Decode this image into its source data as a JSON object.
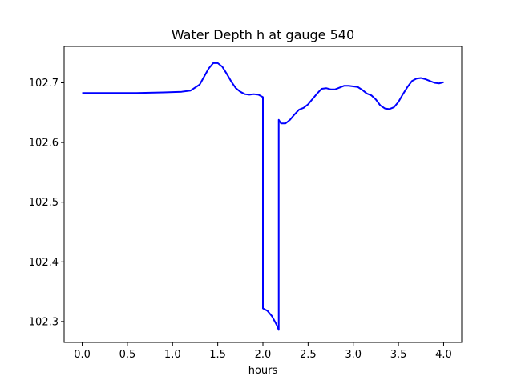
{
  "chart_data": {
    "type": "line",
    "title": "Water Depth h at gauge 540",
    "xlabel": "hours",
    "ylabel": "",
    "xlim": [
      -0.2,
      4.2
    ],
    "ylim": [
      102.265,
      102.761
    ],
    "xticks": [
      0.0,
      0.5,
      1.0,
      1.5,
      2.0,
      2.5,
      3.0,
      3.5,
      4.0
    ],
    "xtick_labels": [
      "0.0",
      "0.5",
      "1.0",
      "1.5",
      "2.0",
      "2.5",
      "3.0",
      "3.5",
      "4.0"
    ],
    "yticks": [
      102.3,
      102.4,
      102.5,
      102.6,
      102.7
    ],
    "ytick_labels": [
      "102.3",
      "102.4",
      "102.5",
      "102.6",
      "102.7"
    ],
    "grid": false,
    "series": [
      {
        "color": "#0000ff",
        "x": [
          0.0,
          0.3,
          0.6,
          0.9,
          1.1,
          1.2,
          1.3,
          1.4,
          1.45,
          1.5,
          1.55,
          1.6,
          1.65,
          1.7,
          1.75,
          1.8,
          1.85,
          1.9,
          1.95,
          2.0,
          2.0,
          2.05,
          2.1,
          2.15,
          2.175,
          2.175,
          2.2,
          2.25,
          2.3,
          2.35,
          2.4,
          2.45,
          2.5,
          2.55,
          2.6,
          2.65,
          2.7,
          2.75,
          2.8,
          2.85,
          2.9,
          2.95,
          3.0,
          3.05,
          3.1,
          3.15,
          3.2,
          3.25,
          3.3,
          3.35,
          3.4,
          3.45,
          3.5,
          3.55,
          3.6,
          3.65,
          3.7,
          3.75,
          3.8,
          3.85,
          3.9,
          3.95,
          4.0
        ],
        "y": [
          102.683,
          102.683,
          102.683,
          102.684,
          102.685,
          102.687,
          102.697,
          102.724,
          102.733,
          102.733,
          102.727,
          102.715,
          102.702,
          102.691,
          102.685,
          102.681,
          102.68,
          102.681,
          102.68,
          102.676,
          102.322,
          102.318,
          102.309,
          102.295,
          102.286,
          102.638,
          102.632,
          102.632,
          102.638,
          102.647,
          102.655,
          102.658,
          102.664,
          102.673,
          102.682,
          102.69,
          102.691,
          102.689,
          102.689,
          102.692,
          102.695,
          102.695,
          102.694,
          102.693,
          102.688,
          102.682,
          102.679,
          102.672,
          102.662,
          102.657,
          102.656,
          102.659,
          102.668,
          102.681,
          102.693,
          102.703,
          102.707,
          102.708,
          102.706,
          102.703,
          102.7,
          102.699,
          102.701
        ]
      }
    ]
  }
}
